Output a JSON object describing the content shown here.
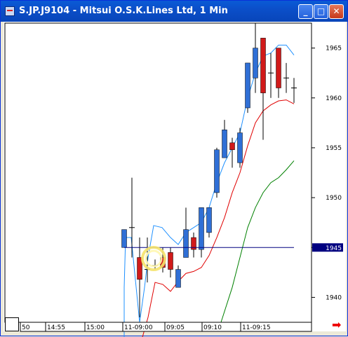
{
  "window": {
    "title": "S.JP.J9104 - Mitsui O.S.K.Lines Ltd, 1 Min",
    "minimize_glyph": "_",
    "maximize_glyph": "□",
    "close_glyph": "✕"
  },
  "colors": {
    "up": "#2f6fd6",
    "down": "#d11a1a",
    "ma_fast": "#1e90ff",
    "ma_mid": "#e00000",
    "ma_slow": "#008000",
    "price_line": "#000080",
    "price_tag": "#000080"
  },
  "chart_data": {
    "type": "candlestick",
    "y_ticks": [
      "1965",
      "1960",
      "1955",
      "1950",
      "1945",
      "1940"
    ],
    "x_ticks": [
      "50",
      "14:55",
      "15:00",
      "11-09:00",
      "09:05",
      "09:10",
      "11-09:15"
    ],
    "last_price_tag": "1945",
    "ylim": [
      1937.5,
      1967.5
    ]
  },
  "nav": {
    "next_arrow": "➡"
  }
}
